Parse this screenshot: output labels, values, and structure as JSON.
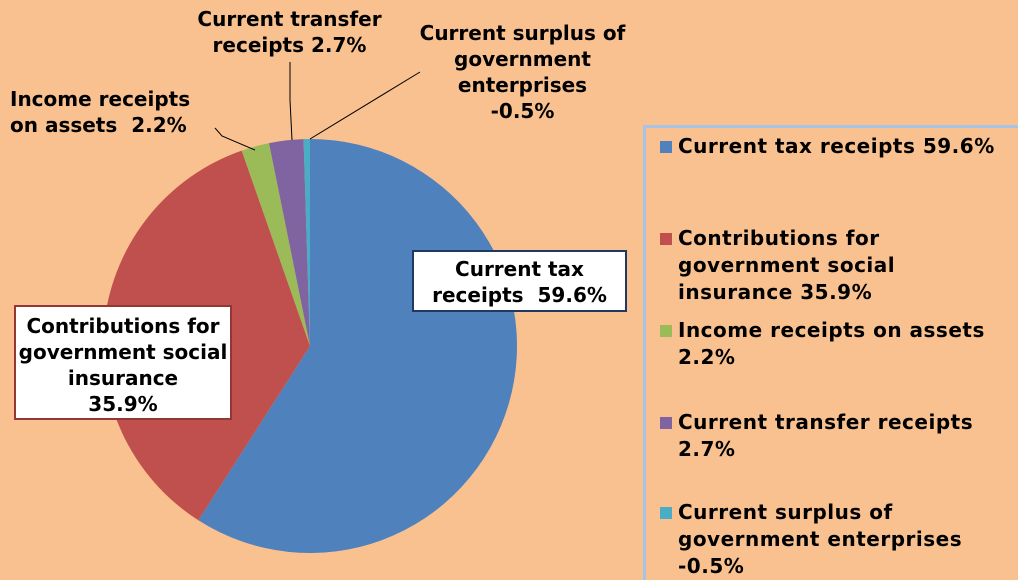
{
  "chart_data": {
    "type": "pie",
    "categories": [
      "Current tax receipts",
      "Contributions for government social insurance",
      "Income receipts on assets",
      "Current transfer receipts",
      "Current surplus of government enterprises"
    ],
    "values": [
      59.6,
      35.9,
      2.2,
      2.7,
      -0.5
    ],
    "value_labels": [
      "59.6%",
      "35.9%",
      "2.2%",
      "2.7%",
      "-0.5%"
    ],
    "colors": [
      "#4f81bd",
      "#c0504d",
      "#9bbb59",
      "#8064a2",
      "#4bacc6"
    ],
    "legend": "right"
  }
}
